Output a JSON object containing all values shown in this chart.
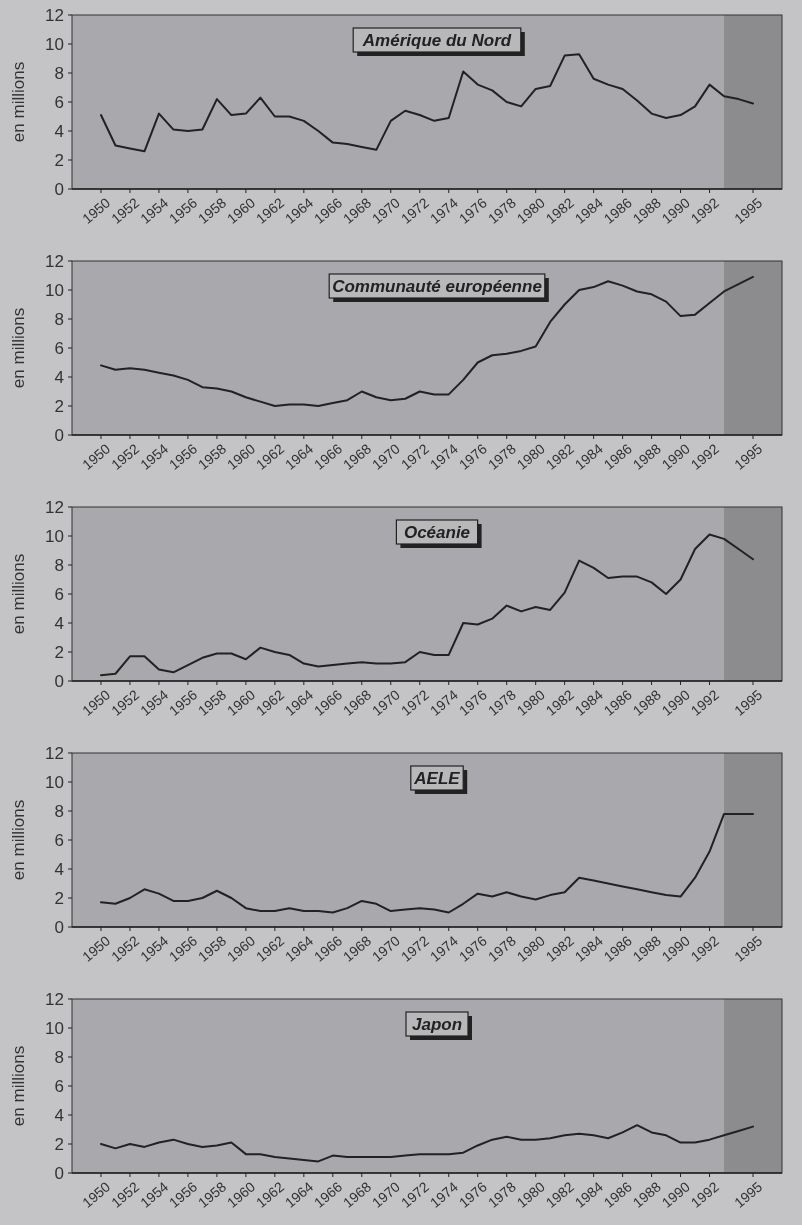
{
  "chart_data": [
    {
      "type": "line",
      "title": "Amérique du Nord",
      "ylabel": "en millions",
      "xlim": [
        1948,
        1997
      ],
      "ylim": [
        0,
        12
      ],
      "yticks": [
        0,
        2,
        4,
        6,
        8,
        10,
        12
      ],
      "xticks": [
        1950,
        1952,
        1954,
        1956,
        1958,
        1960,
        1962,
        1964,
        1966,
        1968,
        1970,
        1972,
        1974,
        1976,
        1978,
        1980,
        1982,
        1984,
        1986,
        1988,
        1990,
        1992,
        1995
      ],
      "bands": [
        {
          "axis": "x",
          "from": 1993,
          "to": 1997,
          "color": "#8c8c8f"
        }
      ],
      "x": [
        1950,
        1951,
        1952,
        1953,
        1954,
        1955,
        1956,
        1957,
        1958,
        1959,
        1960,
        1961,
        1962,
        1963,
        1964,
        1965,
        1966,
        1967,
        1968,
        1969,
        1970,
        1971,
        1972,
        1973,
        1974,
        1975,
        1976,
        1977,
        1978,
        1979,
        1980,
        1981,
        1982,
        1983,
        1984,
        1985,
        1986,
        1987,
        1988,
        1989,
        1990,
        1991,
        1992,
        1993,
        1994,
        1995
      ],
      "series": [
        {
          "color": "#222222",
          "values": [
            5.1,
            3.0,
            2.8,
            2.6,
            5.2,
            4.1,
            4.0,
            4.1,
            6.2,
            5.1,
            5.2,
            6.3,
            5.0,
            5.0,
            4.7,
            4.0,
            3.2,
            3.1,
            2.9,
            2.7,
            4.7,
            5.4,
            5.1,
            4.7,
            4.9,
            8.1,
            7.2,
            6.8,
            6.0,
            5.7,
            6.9,
            7.1,
            9.2,
            9.3,
            7.6,
            7.2,
            6.9,
            6.1,
            5.2,
            4.9,
            5.1,
            5.7,
            7.2,
            6.4,
            6.2,
            5.9
          ]
        }
      ]
    },
    {
      "type": "line",
      "title": "Communauté européenne",
      "ylabel": "en millions",
      "xlim": [
        1948,
        1997
      ],
      "ylim": [
        0,
        12
      ],
      "yticks": [
        0,
        2,
        4,
        6,
        8,
        10,
        12
      ],
      "xticks": [
        1950,
        1952,
        1954,
        1956,
        1958,
        1960,
        1962,
        1964,
        1966,
        1968,
        1970,
        1972,
        1974,
        1976,
        1978,
        1980,
        1982,
        1984,
        1986,
        1988,
        1990,
        1992,
        1995
      ],
      "bands": [
        {
          "axis": "x",
          "from": 1993,
          "to": 1997,
          "color": "#8c8c8f"
        }
      ],
      "x": [
        1950,
        1951,
        1952,
        1953,
        1954,
        1955,
        1956,
        1957,
        1958,
        1959,
        1960,
        1961,
        1962,
        1963,
        1964,
        1965,
        1966,
        1967,
        1968,
        1969,
        1970,
        1971,
        1972,
        1973,
        1974,
        1975,
        1976,
        1977,
        1978,
        1979,
        1980,
        1981,
        1982,
        1983,
        1984,
        1985,
        1986,
        1987,
        1988,
        1989,
        1990,
        1991,
        1992,
        1993,
        1994,
        1995
      ],
      "series": [
        {
          "color": "#222222",
          "values": [
            4.8,
            4.5,
            4.6,
            4.5,
            4.3,
            4.1,
            3.8,
            3.3,
            3.2,
            3.0,
            2.6,
            2.3,
            2.0,
            2.1,
            2.1,
            2.0,
            2.2,
            2.4,
            3.0,
            2.6,
            2.4,
            2.5,
            3.0,
            2.8,
            2.8,
            3.8,
            5.0,
            5.5,
            5.6,
            5.8,
            6.1,
            7.8,
            9.0,
            10.0,
            10.2,
            10.6,
            10.3,
            9.9,
            9.7,
            9.2,
            8.2,
            8.3,
            9.1,
            9.9,
            10.4,
            10.9
          ]
        }
      ]
    },
    {
      "type": "line",
      "title": "Océanie",
      "ylabel": "en millions",
      "xlim": [
        1948,
        1997
      ],
      "ylim": [
        0,
        12
      ],
      "yticks": [
        0,
        2,
        4,
        6,
        8,
        10,
        12
      ],
      "xticks": [
        1950,
        1952,
        1954,
        1956,
        1958,
        1960,
        1962,
        1964,
        1966,
        1968,
        1970,
        1972,
        1974,
        1976,
        1978,
        1980,
        1982,
        1984,
        1986,
        1988,
        1990,
        1992,
        1995
      ],
      "bands": [
        {
          "axis": "x",
          "from": 1993,
          "to": 1997,
          "color": "#8c8c8f"
        }
      ],
      "x": [
        1950,
        1951,
        1952,
        1953,
        1954,
        1955,
        1956,
        1957,
        1958,
        1959,
        1960,
        1961,
        1962,
        1963,
        1964,
        1965,
        1966,
        1967,
        1968,
        1969,
        1970,
        1971,
        1972,
        1973,
        1974,
        1975,
        1976,
        1977,
        1978,
        1979,
        1980,
        1981,
        1982,
        1983,
        1984,
        1985,
        1986,
        1987,
        1988,
        1989,
        1990,
        1991,
        1992,
        1993,
        1994,
        1995
      ],
      "series": [
        {
          "color": "#222222",
          "values": [
            0.4,
            0.5,
            1.7,
            1.7,
            0.8,
            0.6,
            1.1,
            1.6,
            1.9,
            1.9,
            1.5,
            2.3,
            2.0,
            1.8,
            1.2,
            1.0,
            1.1,
            1.2,
            1.3,
            1.2,
            1.2,
            1.3,
            2.0,
            1.8,
            1.8,
            4.0,
            3.9,
            4.3,
            5.2,
            4.8,
            5.1,
            4.9,
            6.1,
            8.3,
            7.8,
            7.1,
            7.2,
            7.2,
            6.8,
            6.0,
            7.0,
            9.1,
            10.1,
            9.8,
            9.1,
            8.4
          ]
        }
      ]
    },
    {
      "type": "line",
      "title": "AELE",
      "ylabel": "en millions",
      "xlim": [
        1948,
        1997
      ],
      "ylim": [
        0,
        12
      ],
      "yticks": [
        0,
        2,
        4,
        6,
        8,
        10,
        12
      ],
      "xticks": [
        1950,
        1952,
        1954,
        1956,
        1958,
        1960,
        1962,
        1964,
        1966,
        1968,
        1970,
        1972,
        1974,
        1976,
        1978,
        1980,
        1982,
        1984,
        1986,
        1988,
        1990,
        1992,
        1995
      ],
      "bands": [
        {
          "axis": "x",
          "from": 1993,
          "to": 1997,
          "color": "#8c8c8f"
        }
      ],
      "x": [
        1950,
        1951,
        1952,
        1953,
        1954,
        1955,
        1956,
        1957,
        1958,
        1959,
        1960,
        1961,
        1962,
        1963,
        1964,
        1965,
        1966,
        1967,
        1968,
        1969,
        1970,
        1971,
        1972,
        1973,
        1974,
        1975,
        1976,
        1977,
        1978,
        1979,
        1980,
        1981,
        1982,
        1983,
        1984,
        1985,
        1986,
        1987,
        1988,
        1989,
        1990,
        1991,
        1992,
        1993,
        1994,
        1995
      ],
      "series": [
        {
          "color": "#222222",
          "values": [
            1.7,
            1.6,
            2.0,
            2.6,
            2.3,
            1.8,
            1.8,
            2.0,
            2.5,
            2.0,
            1.3,
            1.1,
            1.1,
            1.3,
            1.1,
            1.1,
            1.0,
            1.3,
            1.8,
            1.6,
            1.1,
            1.2,
            1.3,
            1.2,
            1.0,
            1.6,
            2.3,
            2.1,
            2.4,
            2.1,
            1.9,
            2.2,
            2.4,
            3.4,
            3.2,
            3.0,
            2.8,
            2.6,
            2.4,
            2.2,
            2.1,
            3.4,
            5.2,
            7.8,
            7.8,
            7.8
          ]
        }
      ]
    },
    {
      "type": "line",
      "title": "Japon",
      "ylabel": "en millions",
      "xlim": [
        1948,
        1997
      ],
      "ylim": [
        0,
        12
      ],
      "yticks": [
        0,
        2,
        4,
        6,
        8,
        10,
        12
      ],
      "xticks": [
        1950,
        1952,
        1954,
        1956,
        1958,
        1960,
        1962,
        1964,
        1966,
        1968,
        1970,
        1972,
        1974,
        1976,
        1978,
        1980,
        1982,
        1984,
        1986,
        1988,
        1990,
        1992,
        1995
      ],
      "bands": [
        {
          "axis": "x",
          "from": 1993,
          "to": 1997,
          "color": "#8c8c8f"
        }
      ],
      "x": [
        1950,
        1951,
        1952,
        1953,
        1954,
        1955,
        1956,
        1957,
        1958,
        1959,
        1960,
        1961,
        1962,
        1963,
        1964,
        1965,
        1966,
        1967,
        1968,
        1969,
        1970,
        1971,
        1972,
        1973,
        1974,
        1975,
        1976,
        1977,
        1978,
        1979,
        1980,
        1981,
        1982,
        1983,
        1984,
        1985,
        1986,
        1987,
        1988,
        1989,
        1990,
        1991,
        1992,
        1993,
        1994,
        1995
      ],
      "series": [
        {
          "color": "#222222",
          "values": [
            2.0,
            1.7,
            2.0,
            1.8,
            2.1,
            2.3,
            2.0,
            1.8,
            1.9,
            2.1,
            1.3,
            1.3,
            1.1,
            1.0,
            0.9,
            0.8,
            1.2,
            1.1,
            1.1,
            1.1,
            1.1,
            1.2,
            1.3,
            1.3,
            1.3,
            1.4,
            1.9,
            2.3,
            2.5,
            2.3,
            2.3,
            2.4,
            2.6,
            2.7,
            2.6,
            2.4,
            2.8,
            3.3,
            2.8,
            2.6,
            2.1,
            2.1,
            2.3,
            2.6,
            2.9,
            3.2
          ]
        }
      ]
    }
  ]
}
